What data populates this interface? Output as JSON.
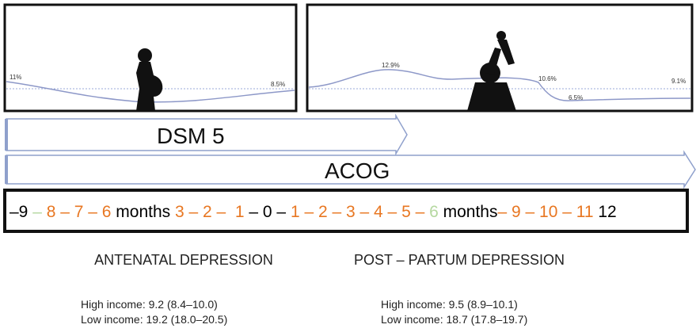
{
  "panels": [
    {
      "labels": [
        "11%",
        "8.5%"
      ]
    },
    {
      "labels": [
        "12.9%",
        "10.6%",
        "6.5%",
        "9.1%"
      ]
    }
  ],
  "arrows": [
    "DSM 5",
    "ACOG"
  ],
  "timeline": [
    {
      "text": "–9 ",
      "color": "#000000"
    },
    {
      "text": "– ",
      "color": "#b5d8a0"
    },
    {
      "text": "8 – 7 – 6 ",
      "color": "#e87722"
    },
    {
      "text": "months ",
      "color": "#000000"
    },
    {
      "text": "3 – 2 –  1 ",
      "color": "#e87722"
    },
    {
      "text": "– 0 – ",
      "color": "#000000"
    },
    {
      "text": "1 – 2 – 3 – 4 – 5 – ",
      "color": "#e87722"
    },
    {
      "text": "6 ",
      "color": "#b5d8a0"
    },
    {
      "text": "months",
      "color": "#000000"
    },
    {
      "text": "– 9 – 10 – 11 ",
      "color": "#e87722"
    },
    {
      "text": "12",
      "color": "#000000"
    }
  ],
  "columns": [
    {
      "heading": "ANTENATAL DEPRESSION",
      "lines": [
        "High income: 9.2 (8.4–10.0)",
        "Low income: 19.2 (18.0–20.5)"
      ]
    },
    {
      "heading": "POST – PARTUM DEPRESSION",
      "lines": [
        "High income: 9.5 (8.9–10.1)",
        "Low income: 18.7 (17.8–19.7)"
      ]
    }
  ]
}
